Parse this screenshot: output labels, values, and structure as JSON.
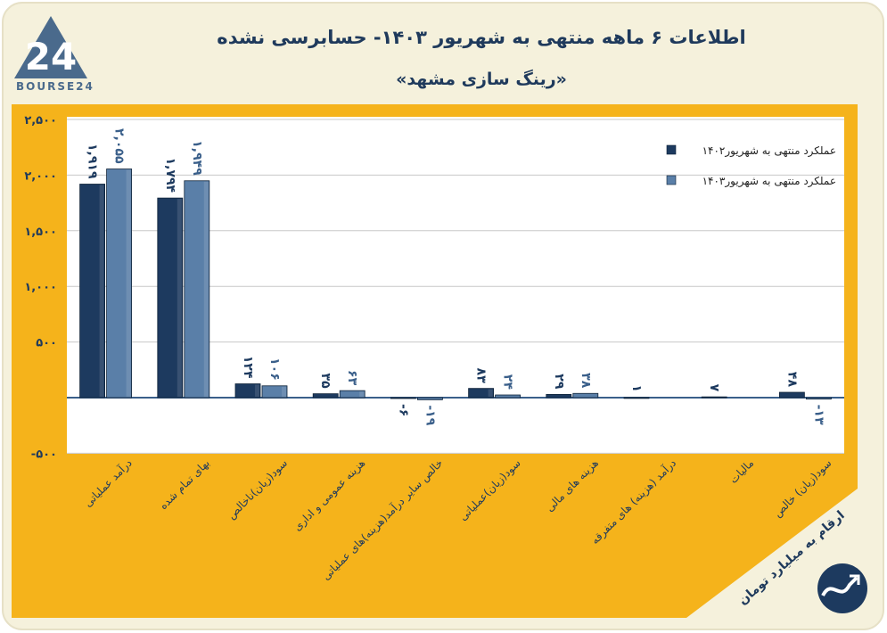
{
  "header": {
    "title": "اطلاعات ۶ ماهه منتهی به شهریور ۱۴۰۳- حسابرسی نشده",
    "subtitle": "«رینگ سازی مشهد»",
    "logo_text": "BOURSE24",
    "logo_number": "24"
  },
  "footer": {
    "note": "ارقام به میلیارد تومان"
  },
  "colors": {
    "background": "#F5F1DC",
    "plot": "#F5B31B",
    "series1": "#1D3A5F",
    "series2": "#5A7FA8",
    "title": "#1F3A5C"
  },
  "chart_data": {
    "type": "bar",
    "title": "اطلاعات ۶ ماهه منتهی به شهریور ۱۴۰۳- حسابرسی نشده",
    "ylim": [
      -500,
      2500
    ],
    "yticks": [
      -500,
      500,
      1000,
      1500,
      2000,
      2500
    ],
    "ytick_labels": [
      "-۵۰۰",
      "۵۰۰",
      "۱,۰۰۰",
      "۱,۵۰۰",
      "۲,۰۰۰",
      "۲,۵۰۰"
    ],
    "grid": true,
    "legend_position": "top-right",
    "categories": [
      "درآمد عملیاتی",
      "بهای تمام شده",
      "سود(زیان)ناخالص",
      "هزینه عمومی و اداری",
      "خالص سایر درآمد(هزینه)های عملیاتی",
      "سود(زیان)عملیاتی",
      "هزینه های مالی",
      "درآمد (هزینه) های متفرقه",
      "مالیات",
      "سود(زیان) خالص"
    ],
    "series": [
      {
        "name": "عملکرد منتهی به شهریور۱۴۰۲",
        "values": [
          1919,
          1794,
          124,
          35,
          -6,
          83,
          29,
          1,
          7,
          48
        ],
        "labels": [
          "۱,۹۱۹",
          "۱,۷۹۴",
          "۱۲۴",
          "۳۵",
          "-۶",
          "۸۳",
          "۲۹",
          "۱",
          "۷",
          "۴۸"
        ]
      },
      {
        "name": "عملکرد منتهی به شهریور۱۴۰۳",
        "values": [
          2055,
          1949,
          106,
          63,
          -19,
          24,
          38,
          0,
          0,
          -13
        ],
        "labels": [
          "۲,۰۵۵",
          "۱,۹۴۹",
          "۱۰۶",
          "۶۳",
          "-۱۹",
          "۲۴",
          "۳۸",
          "",
          "",
          "-۱۳"
        ]
      }
    ]
  }
}
